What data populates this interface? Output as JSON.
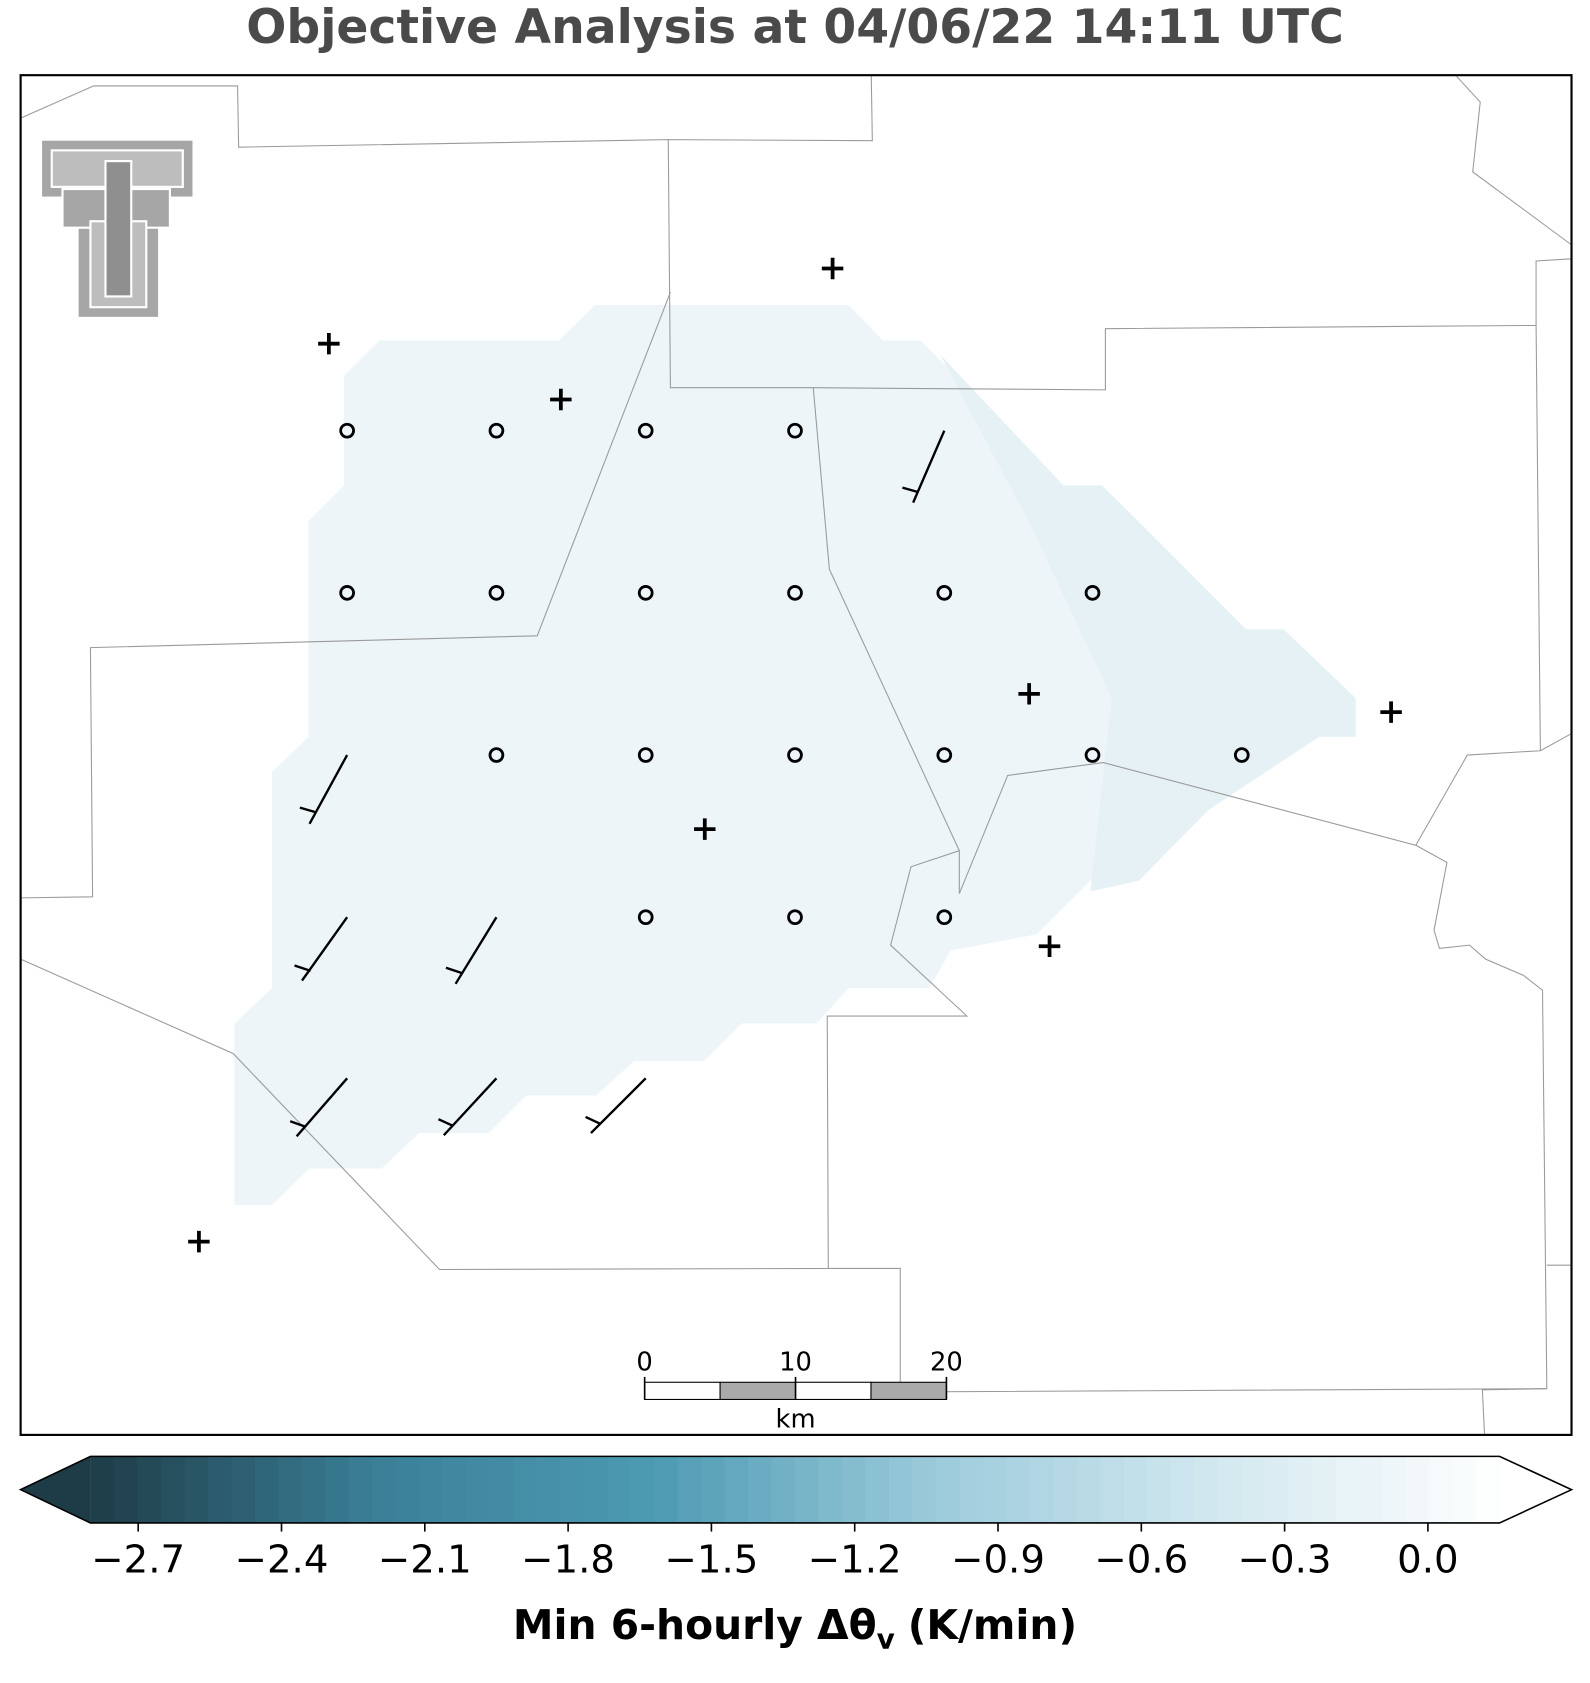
{
  "title": "Objective Analysis at 04/06/22 14:11 UTC",
  "colorbar": {
    "label": {
      "text": "Min 6-hourly Δθ",
      "subscript": "v",
      "units": "(K/min)"
    },
    "lim": [
      -2.8,
      0.15
    ],
    "extend": "both",
    "colors": [
      "#1e3c47",
      "#3b7f97",
      "#4d9ab3",
      "#9ccbdb",
      "#d2e8ef",
      "#ffffff"
    ],
    "ticks": [
      {
        "value": -2.7,
        "label": "−2.7"
      },
      {
        "value": -2.4,
        "label": "−2.4"
      },
      {
        "value": -2.1,
        "label": "−2.1"
      },
      {
        "value": -1.8,
        "label": "−1.8"
      },
      {
        "value": -1.5,
        "label": "−1.5"
      },
      {
        "value": -1.2,
        "label": "−1.2"
      },
      {
        "value": -0.9,
        "label": "−0.9"
      },
      {
        "value": -0.6,
        "label": "−0.6"
      },
      {
        "value": -0.3,
        "label": "−0.3"
      },
      {
        "value": 0.0,
        "label": "0.0"
      }
    ]
  },
  "scalebar": {
    "ticks": [
      0,
      10,
      20
    ],
    "unit": "km"
  }
}
